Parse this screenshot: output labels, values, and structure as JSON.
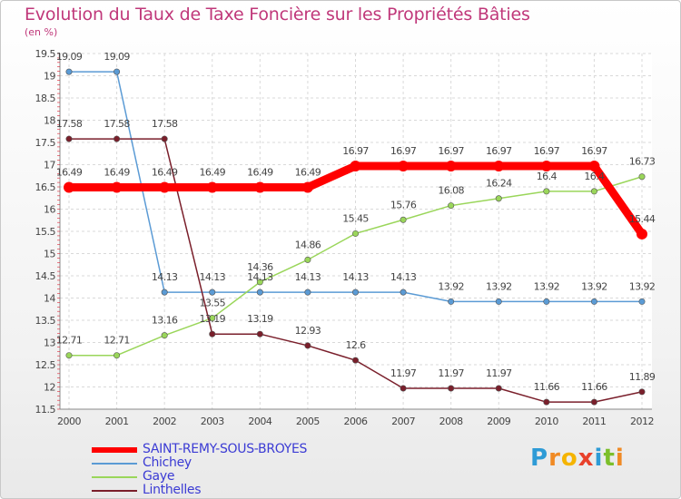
{
  "title": "Evolution du Taux de Taxe Foncière sur les Propriétés Bâties",
  "subtitle": "(en %)",
  "chart_data": {
    "type": "line",
    "x": [
      "2000",
      "2001",
      "2002",
      "2003",
      "2004",
      "2005",
      "2006",
      "2007",
      "2008",
      "2009",
      "2010",
      "2011",
      "2012"
    ],
    "ylim": [
      11.5,
      19.5
    ],
    "yticks": [
      "11.5",
      "12",
      "12.5",
      "13",
      "13.5",
      "14",
      "14.5",
      "15",
      "15.5",
      "16",
      "16.5",
      "17",
      "17.5",
      "18",
      "18.5",
      "19",
      "19.5"
    ],
    "series": [
      {
        "name": "SAINT-REMY-SOUS-BROYES",
        "color": "#ff0000",
        "values": [
          16.49,
          16.49,
          16.49,
          16.49,
          16.49,
          16.49,
          16.97,
          16.97,
          16.97,
          16.97,
          16.97,
          16.97,
          15.44
        ]
      },
      {
        "name": "Chichey",
        "color": "#5b9bd5",
        "values": [
          19.09,
          19.09,
          14.13,
          14.13,
          14.13,
          14.13,
          14.13,
          14.13,
          13.92,
          13.92,
          13.92,
          13.92,
          13.92
        ]
      },
      {
        "name": "Gaye",
        "color": "#9ad65a",
        "values": [
          12.71,
          12.71,
          13.16,
          13.55,
          14.36,
          14.86,
          15.45,
          15.76,
          16.08,
          16.24,
          16.4,
          16.4,
          16.73
        ]
      },
      {
        "name": "Linthelles",
        "color": "#7a1f2b",
        "values": [
          17.58,
          17.58,
          17.58,
          13.19,
          13.19,
          12.93,
          12.6,
          11.97,
          11.97,
          11.97,
          11.66,
          11.66,
          11.89
        ]
      }
    ],
    "data_labels": [
      [
        "16.49",
        "16.49",
        "16.49",
        "16.49",
        "16.49",
        "16.49",
        "16.97",
        "16.97",
        "16.97",
        "16.97",
        "16.97",
        "16.97",
        "15.44"
      ],
      [
        "19.09",
        "19.09",
        "14.13",
        "14.13",
        "14.13",
        "14.13",
        "14.13",
        "14.13",
        "13.92",
        "13.92",
        "13.92",
        "13.92",
        "13.92"
      ],
      [
        "12.71",
        "12.71",
        "13.16",
        "13.55",
        "14.36",
        "14.86",
        "15.45",
        "15.76",
        "16.08",
        "16.24",
        "16.4",
        "16.4",
        "16.73"
      ],
      [
        "17.58",
        "17.58",
        "17.58",
        "13.19",
        "13.19",
        "12.93",
        "12.6",
        "11.97",
        "11.97",
        "11.97",
        "11.66",
        "11.66",
        "11.89"
      ]
    ]
  },
  "legend": [
    {
      "label": "SAINT-REMY-SOUS-BROYES"
    },
    {
      "label": "Chichey"
    },
    {
      "label": "Gaye"
    },
    {
      "label": "Linthelles"
    }
  ],
  "logo": {
    "letters": [
      "P",
      "r",
      "o",
      "x",
      "i",
      "t",
      "i"
    ],
    "colors": [
      "#2e9bd6",
      "#f08a24",
      "#f5b400",
      "#e8412b",
      "#2e9bd6",
      "#7cbf2b",
      "#f08a24"
    ]
  }
}
